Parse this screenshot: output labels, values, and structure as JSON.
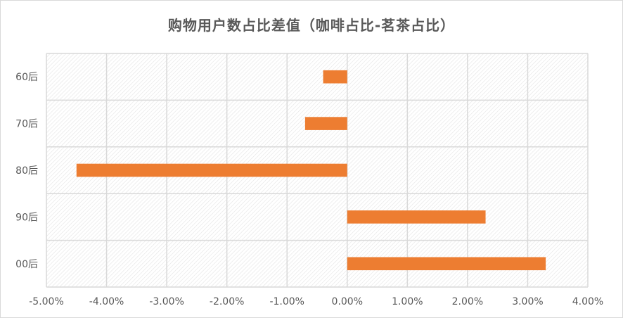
{
  "chart_data": {
    "type": "bar",
    "orientation": "horizontal",
    "title": "购物用户数占比差值（咖啡占比-茗茶占比）",
    "categories": [
      "60后",
      "70后",
      "80后",
      "90后",
      "00后"
    ],
    "values": [
      -0.4,
      -0.7,
      -4.5,
      2.3,
      3.3
    ],
    "xlim": [
      -5,
      4
    ],
    "x_ticks": [
      -5,
      -4,
      -3,
      -2,
      -1,
      0,
      1,
      2,
      3,
      4
    ],
    "x_tick_labels": [
      "-5.00%",
      "-4.00%",
      "-3.00%",
      "-2.00%",
      "-1.00%",
      "0.00%",
      "1.00%",
      "2.00%",
      "3.00%",
      "4.00%"
    ],
    "grid": true,
    "bar_color": "#ed7d31"
  }
}
